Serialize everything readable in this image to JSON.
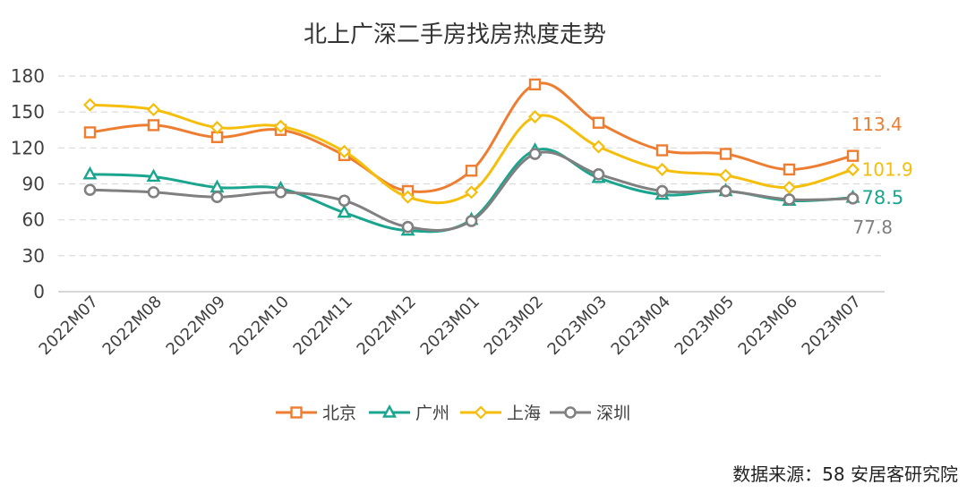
{
  "chart_data": {
    "type": "line",
    "title": "北上广深二手房找房热度走势",
    "xlabel": "",
    "ylabel": "",
    "ylim": [
      0,
      180
    ],
    "yticks": [
      0,
      30,
      60,
      90,
      120,
      150,
      180
    ],
    "grid": true,
    "legend_position": "bottom",
    "categories": [
      "2022M07",
      "2022M08",
      "2022M09",
      "2022M10",
      "2022M11",
      "2022M12",
      "2023M01",
      "2023M02",
      "2023M03",
      "2023M04",
      "2023M05",
      "2023M06",
      "2023M07"
    ],
    "series": [
      {
        "name": "北京",
        "color": "#ED7D31",
        "marker": "square",
        "values": [
          133,
          139,
          129,
          135,
          114,
          84,
          101,
          173,
          141,
          118,
          115,
          102,
          113.4
        ],
        "end_label": "113.4"
      },
      {
        "name": "广州",
        "color": "#1AA58E",
        "marker": "triangle",
        "values": [
          98,
          96,
          87,
          86,
          66,
          51,
          60,
          118,
          95,
          81,
          84,
          76,
          78.5
        ],
        "end_label": "78.5"
      },
      {
        "name": "上海",
        "color": "#F5BE0B",
        "marker": "diamond",
        "values": [
          156,
          152,
          137,
          138,
          117,
          79,
          83,
          146,
          121,
          102,
          97,
          87,
          101.9
        ],
        "end_label": "101.9"
      },
      {
        "name": "深圳",
        "color": "#808080",
        "marker": "circle",
        "values": [
          85,
          83,
          79,
          83,
          76,
          54,
          59,
          115,
          98,
          84,
          84,
          77,
          77.8
        ],
        "end_label": "77.8"
      }
    ]
  },
  "source_text": "数据来源：58 安居客研究院"
}
